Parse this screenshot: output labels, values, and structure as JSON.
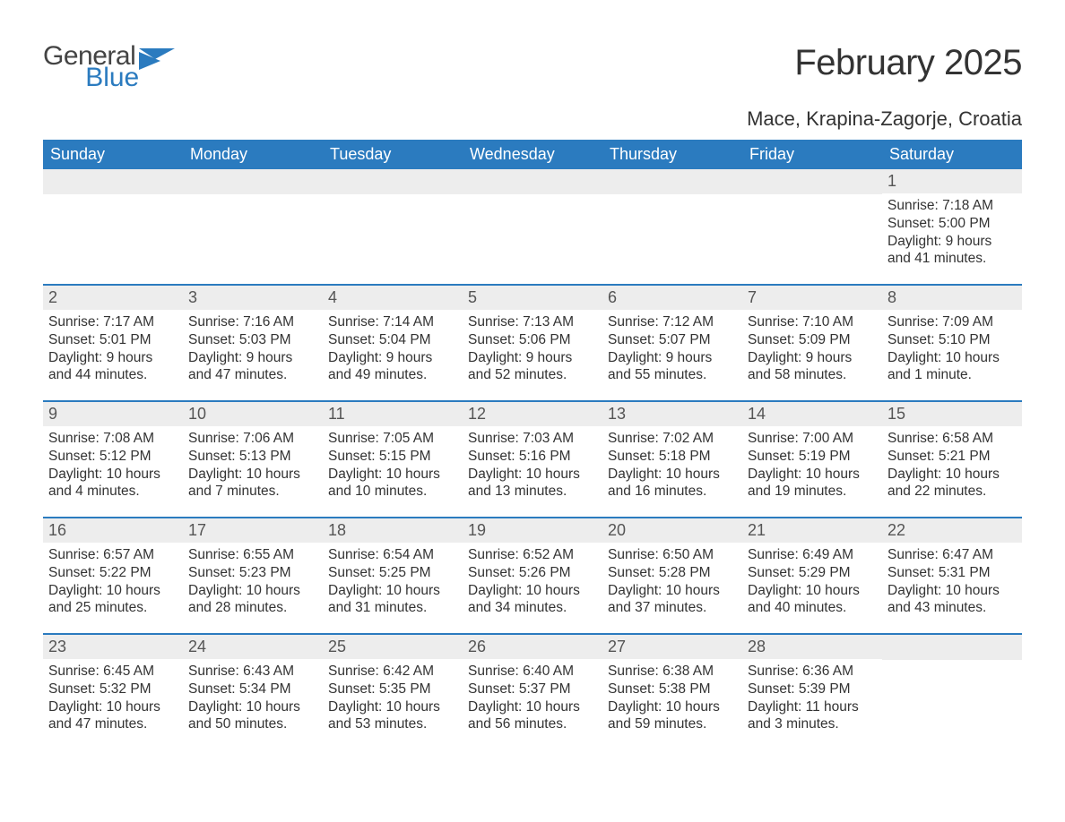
{
  "brand": {
    "word1": "General",
    "word2": "Blue",
    "accent_color": "#2b7bbf",
    "text_color": "#444444"
  },
  "title": "February 2025",
  "location": "Mace, Krapina-Zagorje, Croatia",
  "colors": {
    "header_bg": "#2b7bbf",
    "header_text": "#ffffff",
    "daynum_bg": "#ededed",
    "body_text": "#333333"
  },
  "day_names": [
    "Sunday",
    "Monday",
    "Tuesday",
    "Wednesday",
    "Thursday",
    "Friday",
    "Saturday"
  ],
  "weeks": [
    [
      null,
      null,
      null,
      null,
      null,
      null,
      {
        "n": "1",
        "sunrise": "Sunrise: 7:18 AM",
        "sunset": "Sunset: 5:00 PM",
        "daylight": "Daylight: 9 hours and 41 minutes."
      }
    ],
    [
      {
        "n": "2",
        "sunrise": "Sunrise: 7:17 AM",
        "sunset": "Sunset: 5:01 PM",
        "daylight": "Daylight: 9 hours and 44 minutes."
      },
      {
        "n": "3",
        "sunrise": "Sunrise: 7:16 AM",
        "sunset": "Sunset: 5:03 PM",
        "daylight": "Daylight: 9 hours and 47 minutes."
      },
      {
        "n": "4",
        "sunrise": "Sunrise: 7:14 AM",
        "sunset": "Sunset: 5:04 PM",
        "daylight": "Daylight: 9 hours and 49 minutes."
      },
      {
        "n": "5",
        "sunrise": "Sunrise: 7:13 AM",
        "sunset": "Sunset: 5:06 PM",
        "daylight": "Daylight: 9 hours and 52 minutes."
      },
      {
        "n": "6",
        "sunrise": "Sunrise: 7:12 AM",
        "sunset": "Sunset: 5:07 PM",
        "daylight": "Daylight: 9 hours and 55 minutes."
      },
      {
        "n": "7",
        "sunrise": "Sunrise: 7:10 AM",
        "sunset": "Sunset: 5:09 PM",
        "daylight": "Daylight: 9 hours and 58 minutes."
      },
      {
        "n": "8",
        "sunrise": "Sunrise: 7:09 AM",
        "sunset": "Sunset: 5:10 PM",
        "daylight": "Daylight: 10 hours and 1 minute."
      }
    ],
    [
      {
        "n": "9",
        "sunrise": "Sunrise: 7:08 AM",
        "sunset": "Sunset: 5:12 PM",
        "daylight": "Daylight: 10 hours and 4 minutes."
      },
      {
        "n": "10",
        "sunrise": "Sunrise: 7:06 AM",
        "sunset": "Sunset: 5:13 PM",
        "daylight": "Daylight: 10 hours and 7 minutes."
      },
      {
        "n": "11",
        "sunrise": "Sunrise: 7:05 AM",
        "sunset": "Sunset: 5:15 PM",
        "daylight": "Daylight: 10 hours and 10 minutes."
      },
      {
        "n": "12",
        "sunrise": "Sunrise: 7:03 AM",
        "sunset": "Sunset: 5:16 PM",
        "daylight": "Daylight: 10 hours and 13 minutes."
      },
      {
        "n": "13",
        "sunrise": "Sunrise: 7:02 AM",
        "sunset": "Sunset: 5:18 PM",
        "daylight": "Daylight: 10 hours and 16 minutes."
      },
      {
        "n": "14",
        "sunrise": "Sunrise: 7:00 AM",
        "sunset": "Sunset: 5:19 PM",
        "daylight": "Daylight: 10 hours and 19 minutes."
      },
      {
        "n": "15",
        "sunrise": "Sunrise: 6:58 AM",
        "sunset": "Sunset: 5:21 PM",
        "daylight": "Daylight: 10 hours and 22 minutes."
      }
    ],
    [
      {
        "n": "16",
        "sunrise": "Sunrise: 6:57 AM",
        "sunset": "Sunset: 5:22 PM",
        "daylight": "Daylight: 10 hours and 25 minutes."
      },
      {
        "n": "17",
        "sunrise": "Sunrise: 6:55 AM",
        "sunset": "Sunset: 5:23 PM",
        "daylight": "Daylight: 10 hours and 28 minutes."
      },
      {
        "n": "18",
        "sunrise": "Sunrise: 6:54 AM",
        "sunset": "Sunset: 5:25 PM",
        "daylight": "Daylight: 10 hours and 31 minutes."
      },
      {
        "n": "19",
        "sunrise": "Sunrise: 6:52 AM",
        "sunset": "Sunset: 5:26 PM",
        "daylight": "Daylight: 10 hours and 34 minutes."
      },
      {
        "n": "20",
        "sunrise": "Sunrise: 6:50 AM",
        "sunset": "Sunset: 5:28 PM",
        "daylight": "Daylight: 10 hours and 37 minutes."
      },
      {
        "n": "21",
        "sunrise": "Sunrise: 6:49 AM",
        "sunset": "Sunset: 5:29 PM",
        "daylight": "Daylight: 10 hours and 40 minutes."
      },
      {
        "n": "22",
        "sunrise": "Sunrise: 6:47 AM",
        "sunset": "Sunset: 5:31 PM",
        "daylight": "Daylight: 10 hours and 43 minutes."
      }
    ],
    [
      {
        "n": "23",
        "sunrise": "Sunrise: 6:45 AM",
        "sunset": "Sunset: 5:32 PM",
        "daylight": "Daylight: 10 hours and 47 minutes."
      },
      {
        "n": "24",
        "sunrise": "Sunrise: 6:43 AM",
        "sunset": "Sunset: 5:34 PM",
        "daylight": "Daylight: 10 hours and 50 minutes."
      },
      {
        "n": "25",
        "sunrise": "Sunrise: 6:42 AM",
        "sunset": "Sunset: 5:35 PM",
        "daylight": "Daylight: 10 hours and 53 minutes."
      },
      {
        "n": "26",
        "sunrise": "Sunrise: 6:40 AM",
        "sunset": "Sunset: 5:37 PM",
        "daylight": "Daylight: 10 hours and 56 minutes."
      },
      {
        "n": "27",
        "sunrise": "Sunrise: 6:38 AM",
        "sunset": "Sunset: 5:38 PM",
        "daylight": "Daylight: 10 hours and 59 minutes."
      },
      {
        "n": "28",
        "sunrise": "Sunrise: 6:36 AM",
        "sunset": "Sunset: 5:39 PM",
        "daylight": "Daylight: 11 hours and 3 minutes."
      },
      null
    ]
  ]
}
